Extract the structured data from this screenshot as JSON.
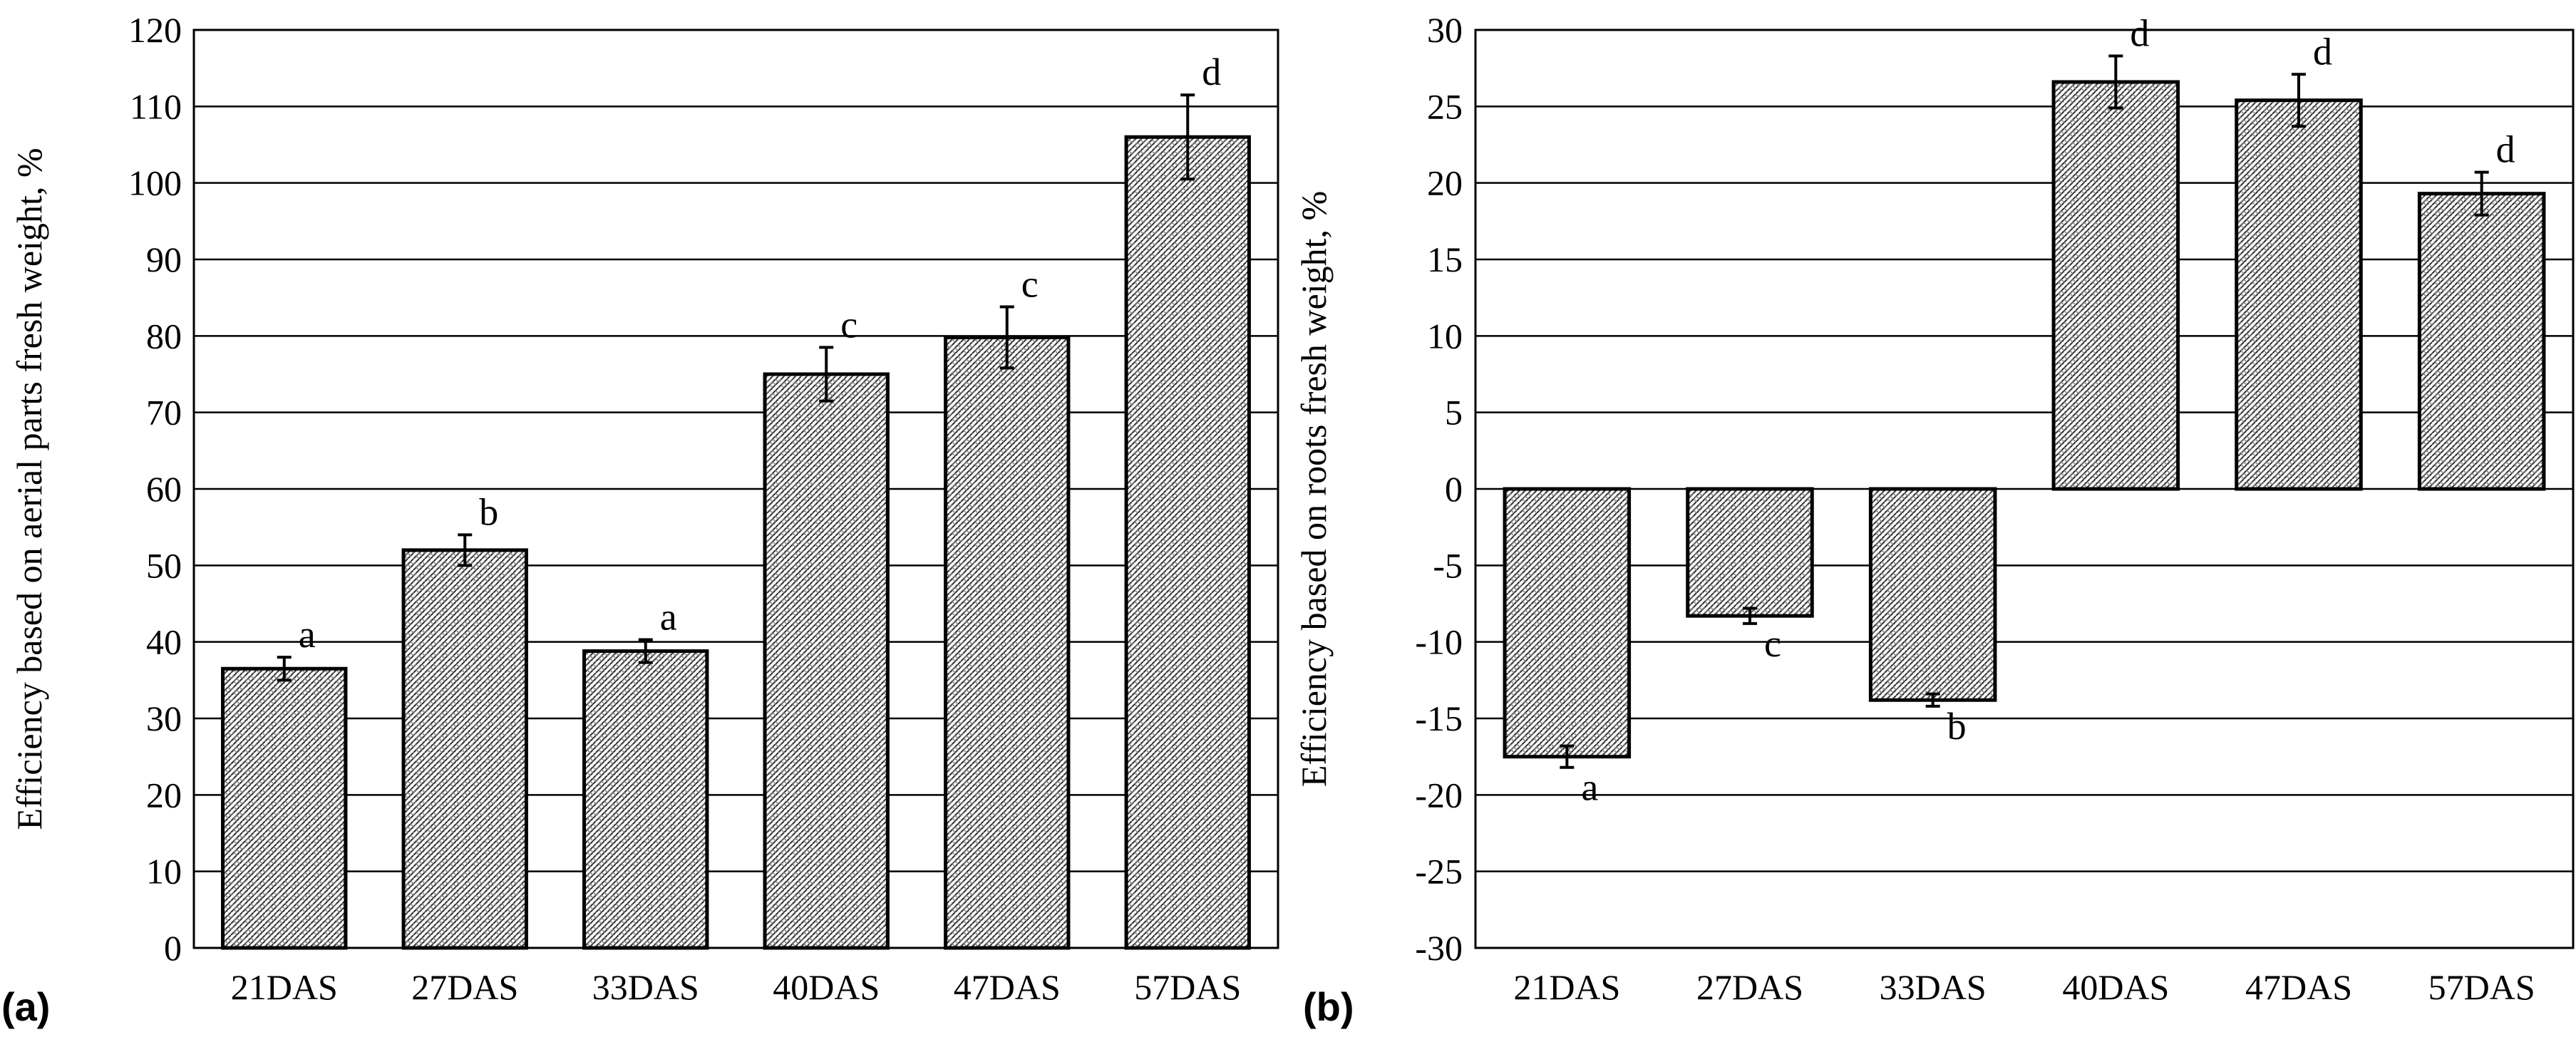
{
  "chart_data": [
    {
      "type": "bar",
      "panel_label": "(a)",
      "ylabel": "Efficiency based on aerial parts fresh weight, %",
      "xlabel": "",
      "ylim": [
        0,
        120
      ],
      "ytick_step": 10,
      "grid": true,
      "categories": [
        "21DAS",
        "27DAS",
        "33DAS",
        "40DAS",
        "47DAS",
        "57DAS"
      ],
      "values": [
        36.5,
        52.0,
        38.8,
        75.0,
        79.8,
        106.0
      ],
      "errors": [
        1.5,
        2.0,
        1.5,
        3.5,
        4.0,
        5.5
      ],
      "significance": [
        "a",
        "b",
        "a",
        "c",
        "c",
        "d"
      ]
    },
    {
      "type": "bar",
      "panel_label": "(b)",
      "ylabel": "Efficiency based on roots fresh weight, %",
      "xlabel": "",
      "ylim": [
        -30,
        30
      ],
      "ytick_step": 5,
      "grid": true,
      "categories": [
        "21DAS",
        "27DAS",
        "33DAS",
        "40DAS",
        "47DAS",
        "57DAS"
      ],
      "values": [
        -17.5,
        -8.3,
        -13.8,
        26.6,
        25.4,
        19.3
      ],
      "errors": [
        0.7,
        0.5,
        0.4,
        1.7,
        1.7,
        1.4
      ],
      "significance": [
        "a",
        "c",
        "b",
        "d",
        "d",
        "d"
      ]
    }
  ]
}
